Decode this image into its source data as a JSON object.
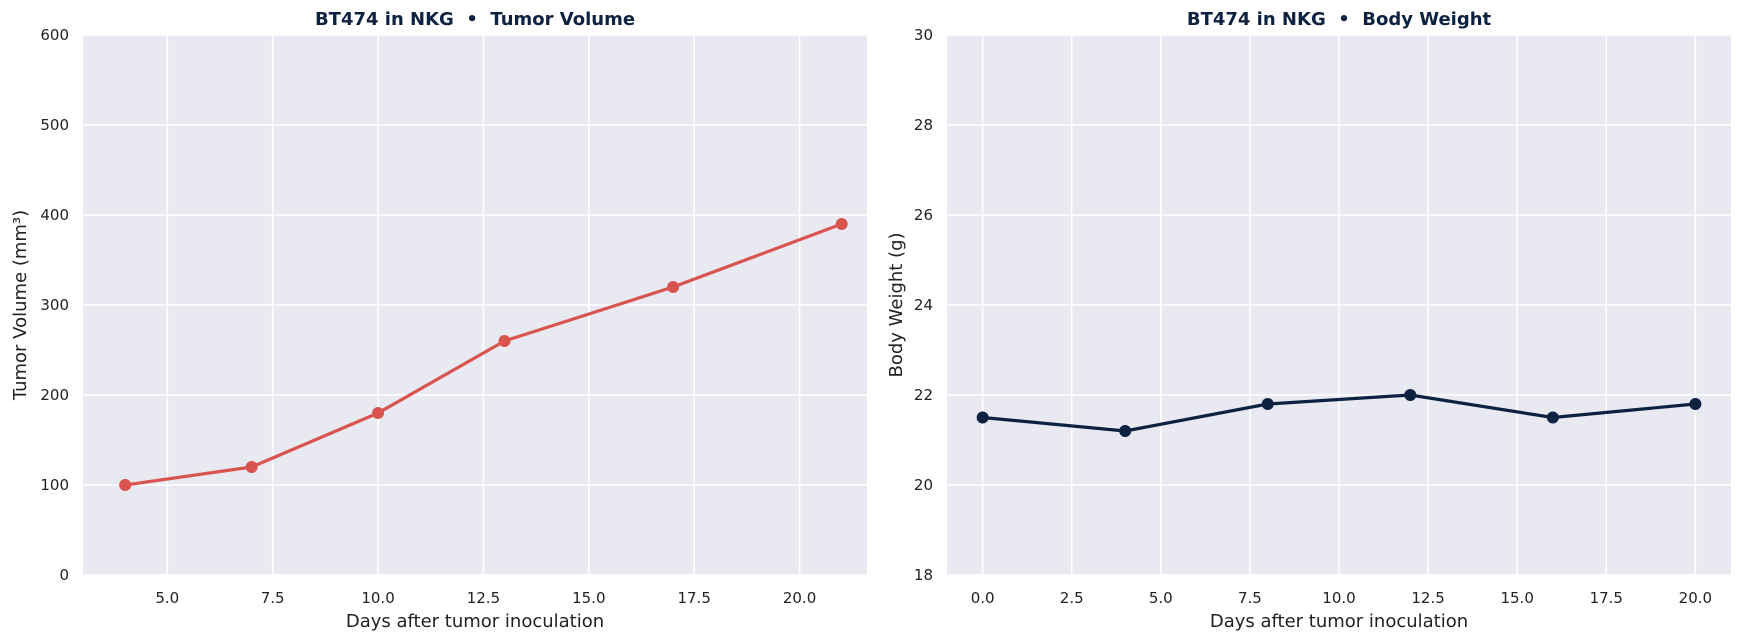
{
  "chart_data": [
    {
      "type": "line",
      "title": "BT474 in NKG  •  Tumor Volume",
      "xlabel": "Days after tumor inoculation",
      "ylabel": "Tumor Volume (mm³)",
      "xlim": [
        3,
        21.6
      ],
      "ylim": [
        0,
        600
      ],
      "xticks": [
        5.0,
        7.5,
        10.0,
        12.5,
        15.0,
        17.5,
        20.0
      ],
      "xtick_labels": [
        "5.0",
        "7.5",
        "10.0",
        "12.5",
        "15.0",
        "17.5",
        "20.0"
      ],
      "yticks": [
        0,
        100,
        200,
        300,
        400,
        500,
        600
      ],
      "ytick_labels": [
        "0",
        "100",
        "200",
        "300",
        "400",
        "500",
        "600"
      ],
      "grid": true,
      "series": [
        {
          "color": "#d9534f",
          "x": [
            4,
            7,
            10,
            13,
            17,
            21
          ],
          "values": [
            100,
            120,
            180,
            260,
            320,
            390
          ]
        }
      ]
    },
    {
      "type": "line",
      "title": "BT474 in NKG  •  Body Weight",
      "xlabel": "Days after tumor inoculation",
      "ylabel": "Body Weight (g)",
      "xlim": [
        -1,
        21
      ],
      "ylim": [
        18,
        30
      ],
      "xticks": [
        0.0,
        2.5,
        5.0,
        7.5,
        10.0,
        12.5,
        15.0,
        17.5,
        20.0
      ],
      "xtick_labels": [
        "0.0",
        "2.5",
        "5.0",
        "7.5",
        "10.0",
        "12.5",
        "15.0",
        "17.5",
        "20.0"
      ],
      "yticks": [
        18,
        20,
        22,
        24,
        26,
        28,
        30
      ],
      "ytick_labels": [
        "18",
        "20",
        "22",
        "24",
        "26",
        "28",
        "30"
      ],
      "grid": true,
      "series": [
        {
          "color": "#0d2240",
          "x": [
            0,
            4,
            8,
            12,
            16,
            20
          ],
          "values": [
            21.5,
            21.2,
            21.8,
            22.0,
            21.5,
            21.8
          ]
        }
      ]
    }
  ]
}
